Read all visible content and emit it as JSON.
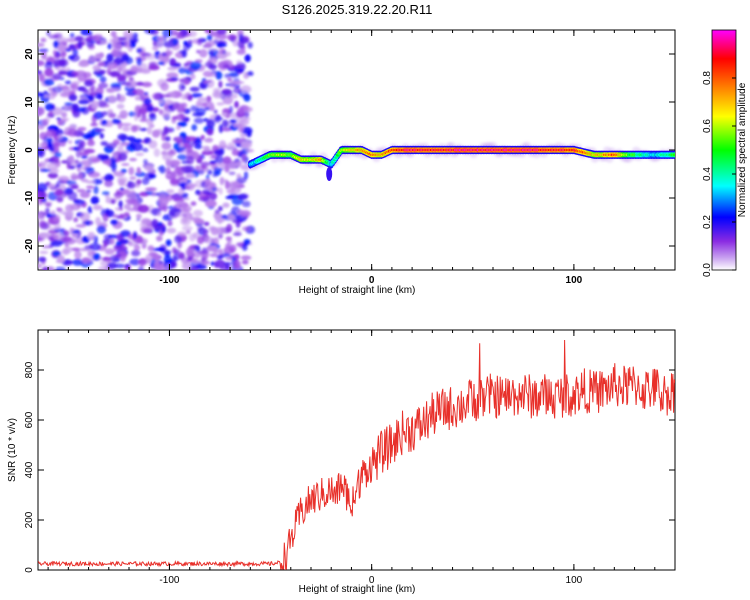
{
  "figure_title": "S126.2025.319.22.20.R11",
  "chart_data": [
    {
      "type": "heatmap",
      "title": "S126.2025.319.22.20.R11",
      "xlabel": "Height of straight line (km)",
      "ylabel": "Frequency (Hz)",
      "xlim": [
        -165,
        150
      ],
      "ylim": [
        -25,
        25
      ],
      "x_ticks": [
        -100,
        0,
        100
      ],
      "x_tick_labels": [
        "-100",
        "0",
        "100"
      ],
      "y_ticks": [
        -20,
        -10,
        0,
        10,
        20
      ],
      "y_tick_labels": [
        "-20",
        "-10",
        "0",
        "10",
        "20"
      ],
      "colorbar": {
        "label": "Normalized spectral amplitude",
        "range": [
          0,
          1
        ],
        "ticks": [
          0.0,
          0.2,
          0.4,
          0.6,
          0.8
        ],
        "tick_labels": [
          "0.0",
          "0.2",
          "0.4",
          "0.6",
          "0.8"
        ],
        "colors": [
          "#ffffff",
          "#8a2be2",
          "#0000ff",
          "#00ffff",
          "#00ff00",
          "#ffff00",
          "#ff8000",
          "#ff0000",
          "#ff00ff"
        ]
      },
      "noise_region": {
        "x_range": [
          -165,
          -60
        ],
        "amplitude_range": [
          0.05,
          0.25
        ]
      },
      "signal_ridge": {
        "x": [
          -60,
          -55,
          -50,
          -45,
          -40,
          -35,
          -30,
          -25,
          -20,
          -15,
          -10,
          -5,
          0,
          5,
          10,
          20,
          30,
          40,
          50,
          60,
          70,
          80,
          90,
          100,
          110,
          115,
          120,
          125,
          130,
          135,
          140,
          150
        ],
        "freq_hz": [
          -3,
          -2,
          -1,
          -1,
          -1,
          -2,
          -2,
          -2,
          -3,
          0,
          0,
          0,
          -1,
          -1,
          0,
          0,
          0,
          0,
          0,
          0,
          0,
          0,
          0,
          0,
          -1,
          -1,
          -1,
          -1,
          -1,
          -1,
          -1,
          -1
        ],
        "amplitude": [
          0.3,
          0.45,
          0.55,
          0.6,
          0.55,
          0.7,
          0.65,
          0.75,
          0.35,
          0.6,
          0.7,
          0.75,
          0.8,
          0.75,
          0.85,
          0.95,
          0.9,
          0.95,
          0.95,
          0.95,
          0.95,
          0.95,
          0.9,
          0.9,
          0.7,
          0.75,
          0.85,
          0.6,
          0.5,
          0.4,
          0.35,
          0.5
        ]
      }
    },
    {
      "type": "line",
      "xlabel": "Height of straight line (km)",
      "ylabel": "SNR (10 * v/v)",
      "xlim": [
        -165,
        150
      ],
      "ylim": [
        0,
        960
      ],
      "x_ticks": [
        -100,
        0,
        100
      ],
      "x_tick_labels": [
        "-100",
        "0",
        "100"
      ],
      "y_ticks": [
        0,
        200,
        400,
        600,
        800
      ],
      "y_tick_labels": [
        "0",
        "200",
        "400",
        "600",
        "800"
      ],
      "series": [
        {
          "name": "SNR",
          "color": "#e8302a",
          "x": [
            -165,
            -140,
            -120,
            -100,
            -80,
            -60,
            -50,
            -45,
            -42,
            -40,
            -35,
            -30,
            -25,
            -20,
            -18,
            -15,
            -12,
            -10,
            -8,
            -5,
            0,
            5,
            10,
            15,
            20,
            25,
            30,
            35,
            40,
            45,
            50,
            55,
            60,
            65,
            70,
            75,
            80,
            85,
            90,
            95,
            100,
            105,
            110,
            115,
            120,
            125,
            130,
            135,
            140,
            145,
            150
          ],
          "y": [
            25,
            25,
            25,
            25,
            25,
            25,
            25,
            30,
            60,
            120,
            230,
            280,
            300,
            320,
            290,
            350,
            300,
            250,
            300,
            380,
            420,
            470,
            500,
            550,
            560,
            580,
            620,
            640,
            650,
            660,
            680,
            690,
            700,
            690,
            700,
            705,
            690,
            700,
            690,
            700,
            700,
            720,
            710,
            720,
            740,
            730,
            740,
            720,
            730,
            700,
            720
          ]
        }
      ]
    }
  ]
}
